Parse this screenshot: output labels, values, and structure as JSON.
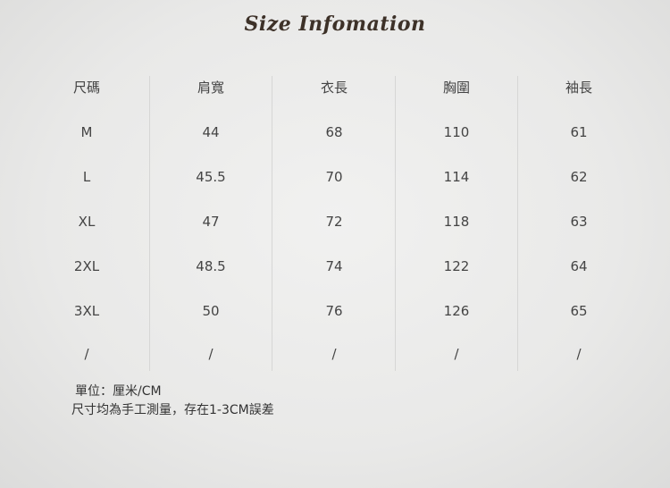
{
  "title": "Size Infomation",
  "table": {
    "headers": [
      "尺碼",
      "肩寬",
      "衣長",
      "胸圍",
      "袖長"
    ],
    "rows": [
      [
        "M",
        "44",
        "68",
        "110",
        "61"
      ],
      [
        "L",
        "45.5",
        "70",
        "114",
        "62"
      ],
      [
        "XL",
        "47",
        "72",
        "118",
        "63"
      ],
      [
        "2XL",
        "48.5",
        "74",
        "122",
        "64"
      ],
      [
        "3XL",
        "50",
        "76",
        "126",
        "65"
      ],
      [
        "/",
        "/",
        "/",
        "/",
        "/"
      ]
    ]
  },
  "notes": {
    "unit": "單位：厘米/CM",
    "disclaimer": "尺寸均為手工測量，存在1-3CM誤差"
  }
}
